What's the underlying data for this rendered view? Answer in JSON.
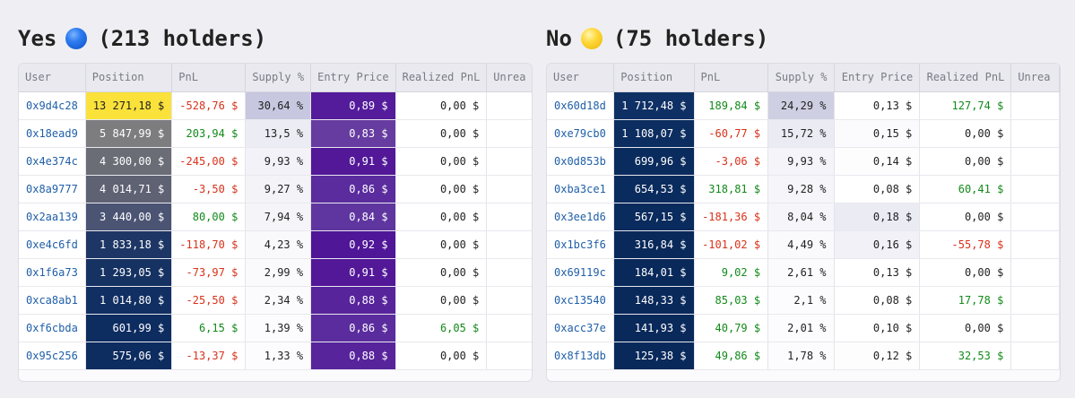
{
  "colors": {
    "user_link": "#1f5fa8",
    "positive": "#128a1a",
    "negative": "#d8321b",
    "header_bg": "#e9e9ef",
    "page_bg": "#efeff3"
  },
  "columns": [
    "User",
    "Position",
    "PnL",
    "Supply %",
    "Entry Price",
    "Realized PnL",
    "Unrea"
  ],
  "yes": {
    "label": "Yes",
    "icon": "blue-circle-icon",
    "holders": "(213 holders)",
    "rows": [
      {
        "user": "0x9d4c28",
        "position": "13 271,18 $",
        "pnl": "-528,76 $",
        "supply": "30,64 %",
        "entry": "0,89 $",
        "realized": "0,00 $",
        "pos_bg": "#fbe23a",
        "sup_bg": "#c7c7e0",
        "ep_bg": "#541b9b"
      },
      {
        "user": "0x18ead9",
        "position": "5 847,99 $",
        "pnl": "203,94 $",
        "supply": "13,5 %",
        "entry": "0,83 $",
        "realized": "0,00 $",
        "pos_bg": "#7d7d80",
        "sup_bg": "#ececf4",
        "ep_bg": "#663ca1"
      },
      {
        "user": "0x4e374c",
        "position": "4 300,00 $",
        "pnl": "-245,00 $",
        "supply": "9,93 %",
        "entry": "0,91 $",
        "realized": "0,00 $",
        "pos_bg": "#6a6d76",
        "sup_bg": "#f2f2f8",
        "ep_bg": "#521898"
      },
      {
        "user": "0x8a9777",
        "position": "4 014,71 $",
        "pnl": "-3,50 $",
        "supply": "9,27 %",
        "entry": "0,86 $",
        "realized": "0,00 $",
        "pos_bg": "#5e6273",
        "sup_bg": "#f3f3f8",
        "ep_bg": "#5a2c9d"
      },
      {
        "user": "0x2aa139",
        "position": "3 440,00 $",
        "pnl": "80,00 $",
        "supply": "7,94 %",
        "entry": "0,84 $",
        "realized": "0,00 $",
        "pos_bg": "#4b5473",
        "sup_bg": "#f5f5f9",
        "ep_bg": "#5f36a0"
      },
      {
        "user": "0xe4c6fd",
        "position": "1 833,18 $",
        "pnl": "-118,70 $",
        "supply": "4,23 %",
        "entry": "0,92 $",
        "realized": "0,00 $",
        "pos_bg": "#1d3665",
        "sup_bg": "#f9f9fc",
        "ep_bg": "#4f1697"
      },
      {
        "user": "0x1f6a73",
        "position": "1 293,05 $",
        "pnl": "-73,97 $",
        "supply": "2,99 %",
        "entry": "0,91 $",
        "realized": "0,00 $",
        "pos_bg": "#153262",
        "sup_bg": "#fafafc",
        "ep_bg": "#521898"
      },
      {
        "user": "0xca8ab1",
        "position": "1 014,80 $",
        "pnl": "-25,50 $",
        "supply": "2,34 %",
        "entry": "0,88 $",
        "realized": "0,00 $",
        "pos_bg": "#112f62",
        "sup_bg": "#fbfbfd",
        "ep_bg": "#57249b"
      },
      {
        "user": "0xf6cbda",
        "position": "601,99 $",
        "pnl": "6,15 $",
        "supply": "1,39 %",
        "entry": "0,86 $",
        "realized": "6,05 $",
        "pos_bg": "#0d2c60",
        "sup_bg": "#fcfcfe",
        "ep_bg": "#5a2c9d"
      },
      {
        "user": "0x95c256",
        "position": "575,06 $",
        "pnl": "-13,37 $",
        "supply": "1,33 %",
        "entry": "0,88 $",
        "realized": "0,00 $",
        "pos_bg": "#0d2c60",
        "sup_bg": "#fcfcfe",
        "ep_bg": "#57249b"
      }
    ]
  },
  "no": {
    "label": "No",
    "icon": "yellow-circle-icon",
    "holders": "(75 holders)",
    "rows": [
      {
        "user": "0x60d18d",
        "position": "1 712,48 $",
        "pnl": "189,84 $",
        "supply": "24,29 %",
        "entry": "0,13 $",
        "realized": "127,74 $",
        "pos_bg": "#0e3064",
        "sup_bg": "#cfcfe3",
        "ep_bg": "#ffffff"
      },
      {
        "user": "0xe79cb0",
        "position": "1 108,07 $",
        "pnl": "-60,77 $",
        "supply": "15,72 %",
        "entry": "0,15 $",
        "realized": "0,00 $",
        "pos_bg": "#0c2d60",
        "sup_bg": "#ebebf4",
        "ep_bg": "#fbfbfd"
      },
      {
        "user": "0x0d853b",
        "position": "699,96 $",
        "pnl": "-3,06 $",
        "supply": "9,93 %",
        "entry": "0,14 $",
        "realized": "0,00 $",
        "pos_bg": "#0a2b5d",
        "sup_bg": "#f4f4f9",
        "ep_bg": "#fdfdfe"
      },
      {
        "user": "0xba3ce1",
        "position": "654,53 $",
        "pnl": "318,81 $",
        "supply": "9,28 %",
        "entry": "0,08 $",
        "realized": "60,41 $",
        "pos_bg": "#0a2b5d",
        "sup_bg": "#f5f5fa",
        "ep_bg": "#ffffff"
      },
      {
        "user": "0x3ee1d6",
        "position": "567,15 $",
        "pnl": "-181,36 $",
        "supply": "8,04 %",
        "entry": "0,18 $",
        "realized": "0,00 $",
        "pos_bg": "#0a2b5d",
        "sup_bg": "#f6f6fa",
        "ep_bg": "#ebebf4"
      },
      {
        "user": "0x1bc3f6",
        "position": "316,84 $",
        "pnl": "-101,02 $",
        "supply": "4,49 %",
        "entry": "0,16 $",
        "realized": "-55,78 $",
        "pos_bg": "#09295b",
        "sup_bg": "#fafafc",
        "ep_bg": "#f1f1f7"
      },
      {
        "user": "0x69119c",
        "position": "184,01 $",
        "pnl": "9,02 $",
        "supply": "2,61 %",
        "entry": "0,13 $",
        "realized": "0,00 $",
        "pos_bg": "#09295b",
        "sup_bg": "#fbfbfd",
        "ep_bg": "#ffffff"
      },
      {
        "user": "0xc13540",
        "position": "148,33 $",
        "pnl": "85,03 $",
        "supply": "2,1 %",
        "entry": "0,08 $",
        "realized": "17,78 $",
        "pos_bg": "#09295b",
        "sup_bg": "#fcfcfe",
        "ep_bg": "#ffffff"
      },
      {
        "user": "0xacc37e",
        "position": "141,93 $",
        "pnl": "40,79 $",
        "supply": "2,01 %",
        "entry": "0,10 $",
        "realized": "0,00 $",
        "pos_bg": "#09295b",
        "sup_bg": "#fcfcfe",
        "ep_bg": "#ffffff"
      },
      {
        "user": "0x8f13db",
        "position": "125,38 $",
        "pnl": "49,86 $",
        "supply": "1,78 %",
        "entry": "0,12 $",
        "realized": "32,53 $",
        "pos_bg": "#09295b",
        "sup_bg": "#fcfcfe",
        "ep_bg": "#fdfdfe"
      }
    ]
  }
}
